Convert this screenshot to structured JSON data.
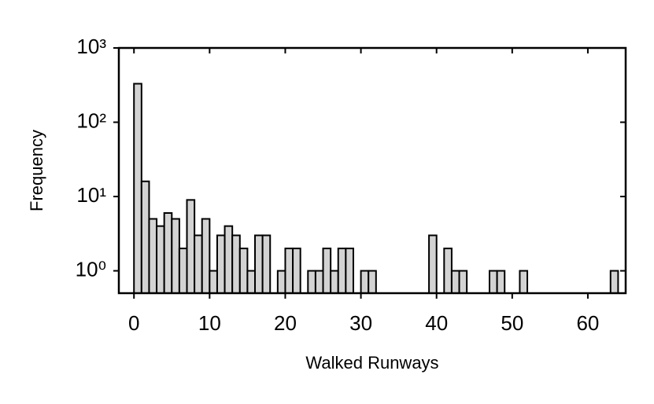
{
  "chart_data": {
    "type": "histogram",
    "x_label": "Walked Runways",
    "y_label": "Frequency",
    "bins": [
      0,
      1,
      2,
      3,
      4,
      5,
      6,
      7,
      8,
      9,
      10,
      11,
      12,
      13,
      14,
      15,
      16,
      17,
      18,
      19,
      20,
      21,
      22,
      23,
      24,
      25,
      26,
      27,
      28,
      29,
      30,
      31,
      32,
      33,
      34,
      35,
      36,
      37,
      38,
      39,
      40,
      41,
      42,
      43,
      44,
      45,
      46,
      47,
      48,
      49,
      50,
      51,
      52,
      53,
      54,
      55,
      56,
      57,
      58,
      59,
      60,
      61,
      62,
      63,
      64,
      65
    ],
    "values": [
      330,
      16,
      5,
      4,
      6,
      5,
      2,
      9,
      3,
      5,
      1,
      3,
      4,
      3,
      2,
      1,
      3,
      3,
      0,
      1,
      2,
      2,
      0,
      1,
      1,
      2,
      1,
      2,
      2,
      0,
      1,
      1,
      0,
      0,
      0,
      0,
      0,
      0,
      0,
      3,
      0,
      2,
      1,
      1,
      0,
      0,
      0,
      1,
      1,
      0,
      0,
      1,
      0,
      0,
      0,
      0,
      0,
      0,
      0,
      0,
      0,
      0,
      0,
      1,
      0
    ],
    "color": "#d3d3d3",
    "xlim": [
      -2,
      65
    ],
    "xticks": [
      0,
      10,
      20,
      30,
      40,
      50,
      60
    ],
    "ylim": [
      0.5,
      1000
    ],
    "y_log": true,
    "yticks": [
      {
        "value": 1,
        "label": "10⁰"
      },
      {
        "value": 10,
        "label": "10¹"
      },
      {
        "value": 100,
        "label": "10²"
      },
      {
        "value": 1000,
        "label": "10³"
      }
    ]
  }
}
